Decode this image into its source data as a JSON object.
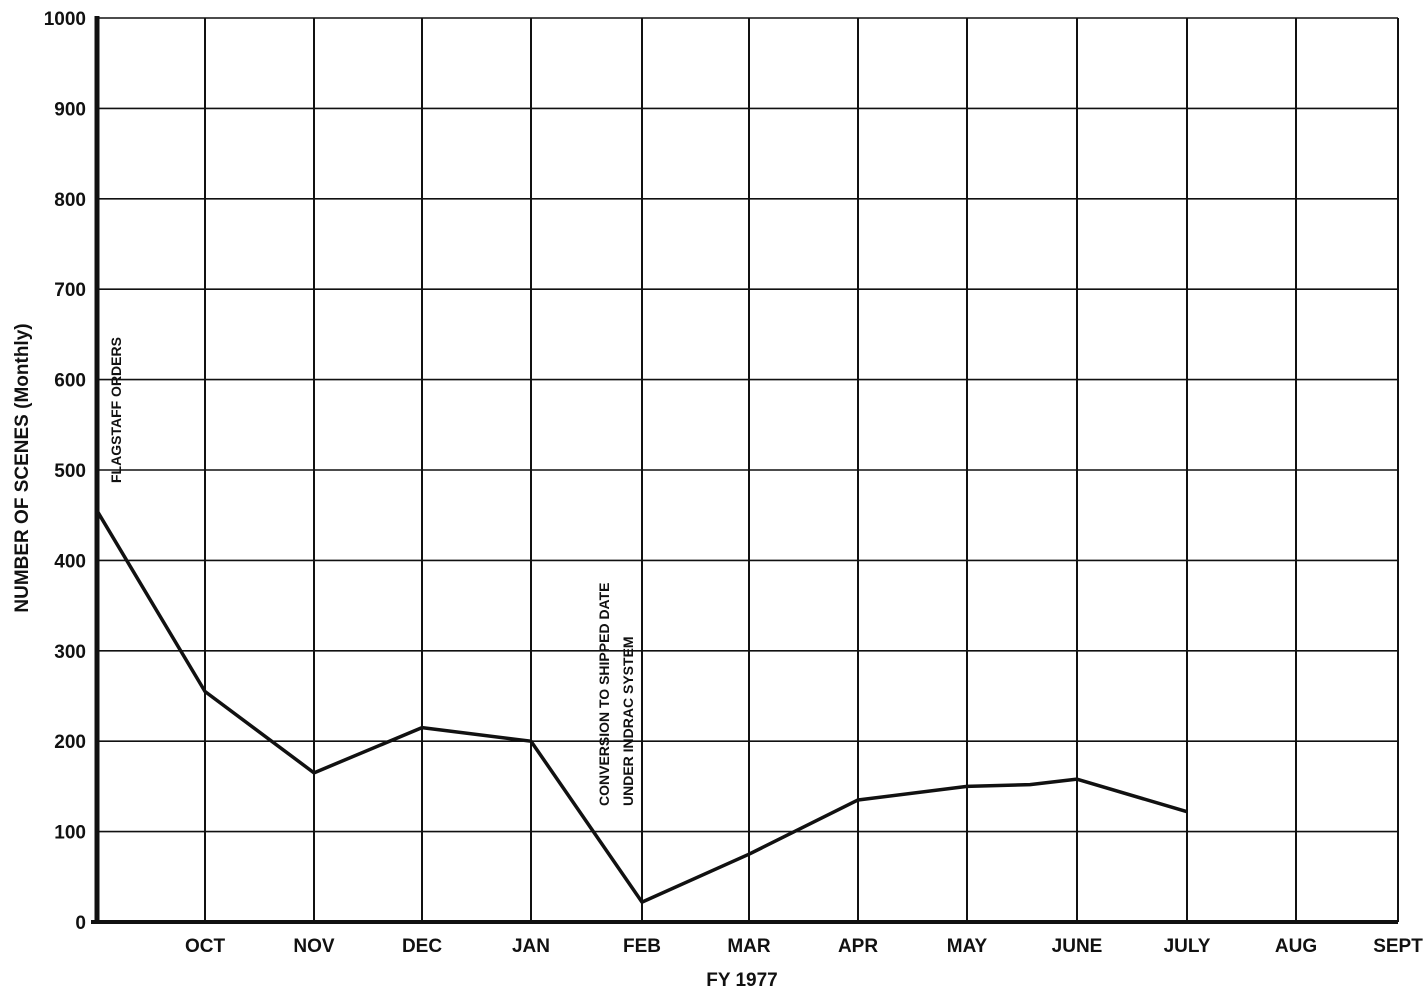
{
  "chart_data": {
    "type": "line",
    "xlabel": "FY 1977",
    "ylabel": "NUMBER OF SCENES (Monthly)",
    "ylim": [
      0,
      1000
    ],
    "yticks": [
      0,
      100,
      200,
      300,
      400,
      500,
      600,
      700,
      800,
      900,
      1000
    ],
    "categories": [
      "OCT",
      "NOV",
      "DEC",
      "JAN",
      "FEB",
      "MAR",
      "APR",
      "MAY",
      "JUNE",
      "JULY",
      "AUG",
      "SEPT"
    ],
    "grid": true,
    "series": [
      {
        "points": [
          {
            "x": "",
            "y": 455
          },
          {
            "x": "OCT",
            "y": 255
          },
          {
            "x": "NOV",
            "y": 165
          },
          {
            "x": "DEC",
            "y": 215
          },
          {
            "x": "JAN",
            "y": 200
          },
          {
            "x": "FEB",
            "y": 22
          },
          {
            "x": "MAR",
            "y": 75
          },
          {
            "x": "APR",
            "y": 135
          },
          {
            "x": "MAY",
            "y": 150
          },
          {
            "x": "MAY-JUNE",
            "y": 152
          },
          {
            "x": "JUNE",
            "y": 158
          },
          {
            "x": "JULY",
            "y": 122
          }
        ]
      }
    ],
    "annotations": [
      {
        "text": "FLAGSTAFF ORDERS"
      },
      {
        "lines": [
          "CONVERSION TO SHIPPED DATE",
          "UNDER INDRAC SYSTEM"
        ]
      }
    ]
  }
}
